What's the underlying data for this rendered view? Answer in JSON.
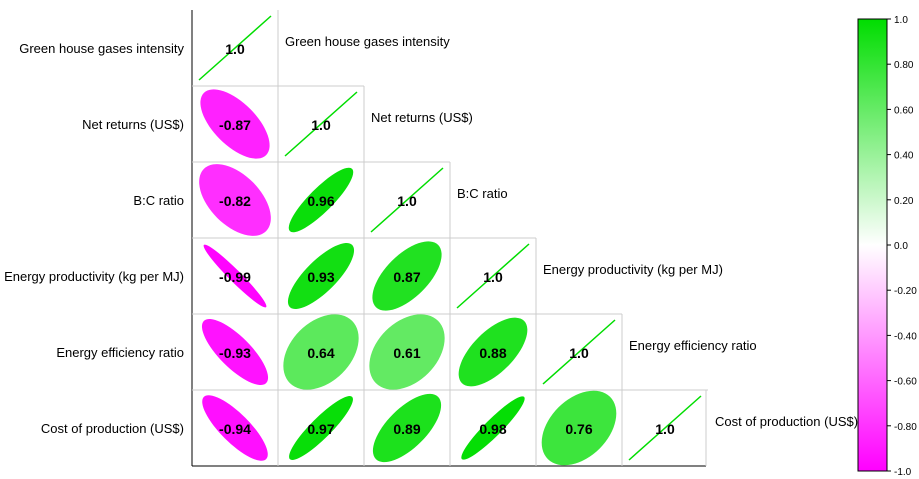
{
  "chart_data": {
    "type": "heatmap",
    "subtype": "correlation-ellipse-lower-triangle",
    "variables": [
      "Green house gases intensity",
      "Net returns (US$)",
      "B:C ratio",
      "Energy productivity (kg per MJ)",
      "Energy efficiency ratio",
      "Cost of production (US$)"
    ],
    "diagonal_label": "1.0",
    "matrix": [
      [
        1.0,
        null,
        null,
        null,
        null,
        null
      ],
      [
        -0.87,
        1.0,
        null,
        null,
        null,
        null
      ],
      [
        -0.82,
        0.96,
        1.0,
        null,
        null,
        null
      ],
      [
        -0.99,
        0.93,
        0.87,
        1.0,
        null,
        null
      ],
      [
        -0.93,
        0.64,
        0.61,
        0.88,
        1.0,
        null
      ],
      [
        -0.94,
        0.97,
        0.89,
        0.98,
        0.76,
        1.0
      ]
    ],
    "value_labels": [
      [
        "1.0",
        null,
        null,
        null,
        null,
        null
      ],
      [
        "-0.87",
        "1.0",
        null,
        null,
        null,
        null
      ],
      [
        "-0.82",
        "0.96",
        "1.0",
        null,
        null,
        null
      ],
      [
        "-0.99",
        "0.93",
        "0.87",
        "1.0",
        null,
        null
      ],
      [
        "-0.93",
        "0.64",
        "0.61",
        "0.88",
        "1.0",
        null
      ],
      [
        "-0.94",
        "0.97",
        "0.89",
        "0.98",
        "0.76",
        "1.0"
      ]
    ],
    "colorbar": {
      "range": [
        -1.0,
        1.0
      ],
      "ticks": [
        "1.0",
        "0.80",
        "0.60",
        "0.40",
        "0.20",
        "0.0",
        "-0.20",
        "-0.40",
        "-0.60",
        "-0.80",
        "-1.0"
      ],
      "tick_values": [
        1.0,
        0.8,
        0.6,
        0.4,
        0.2,
        0.0,
        -0.2,
        -0.4,
        -0.6,
        -0.8,
        -1.0
      ],
      "positive_color": "#00dd00",
      "neutral_color": "#ffffff",
      "negative_color": "#ff00ff",
      "placement": "right"
    },
    "legend": "colorbar",
    "grid": true
  }
}
